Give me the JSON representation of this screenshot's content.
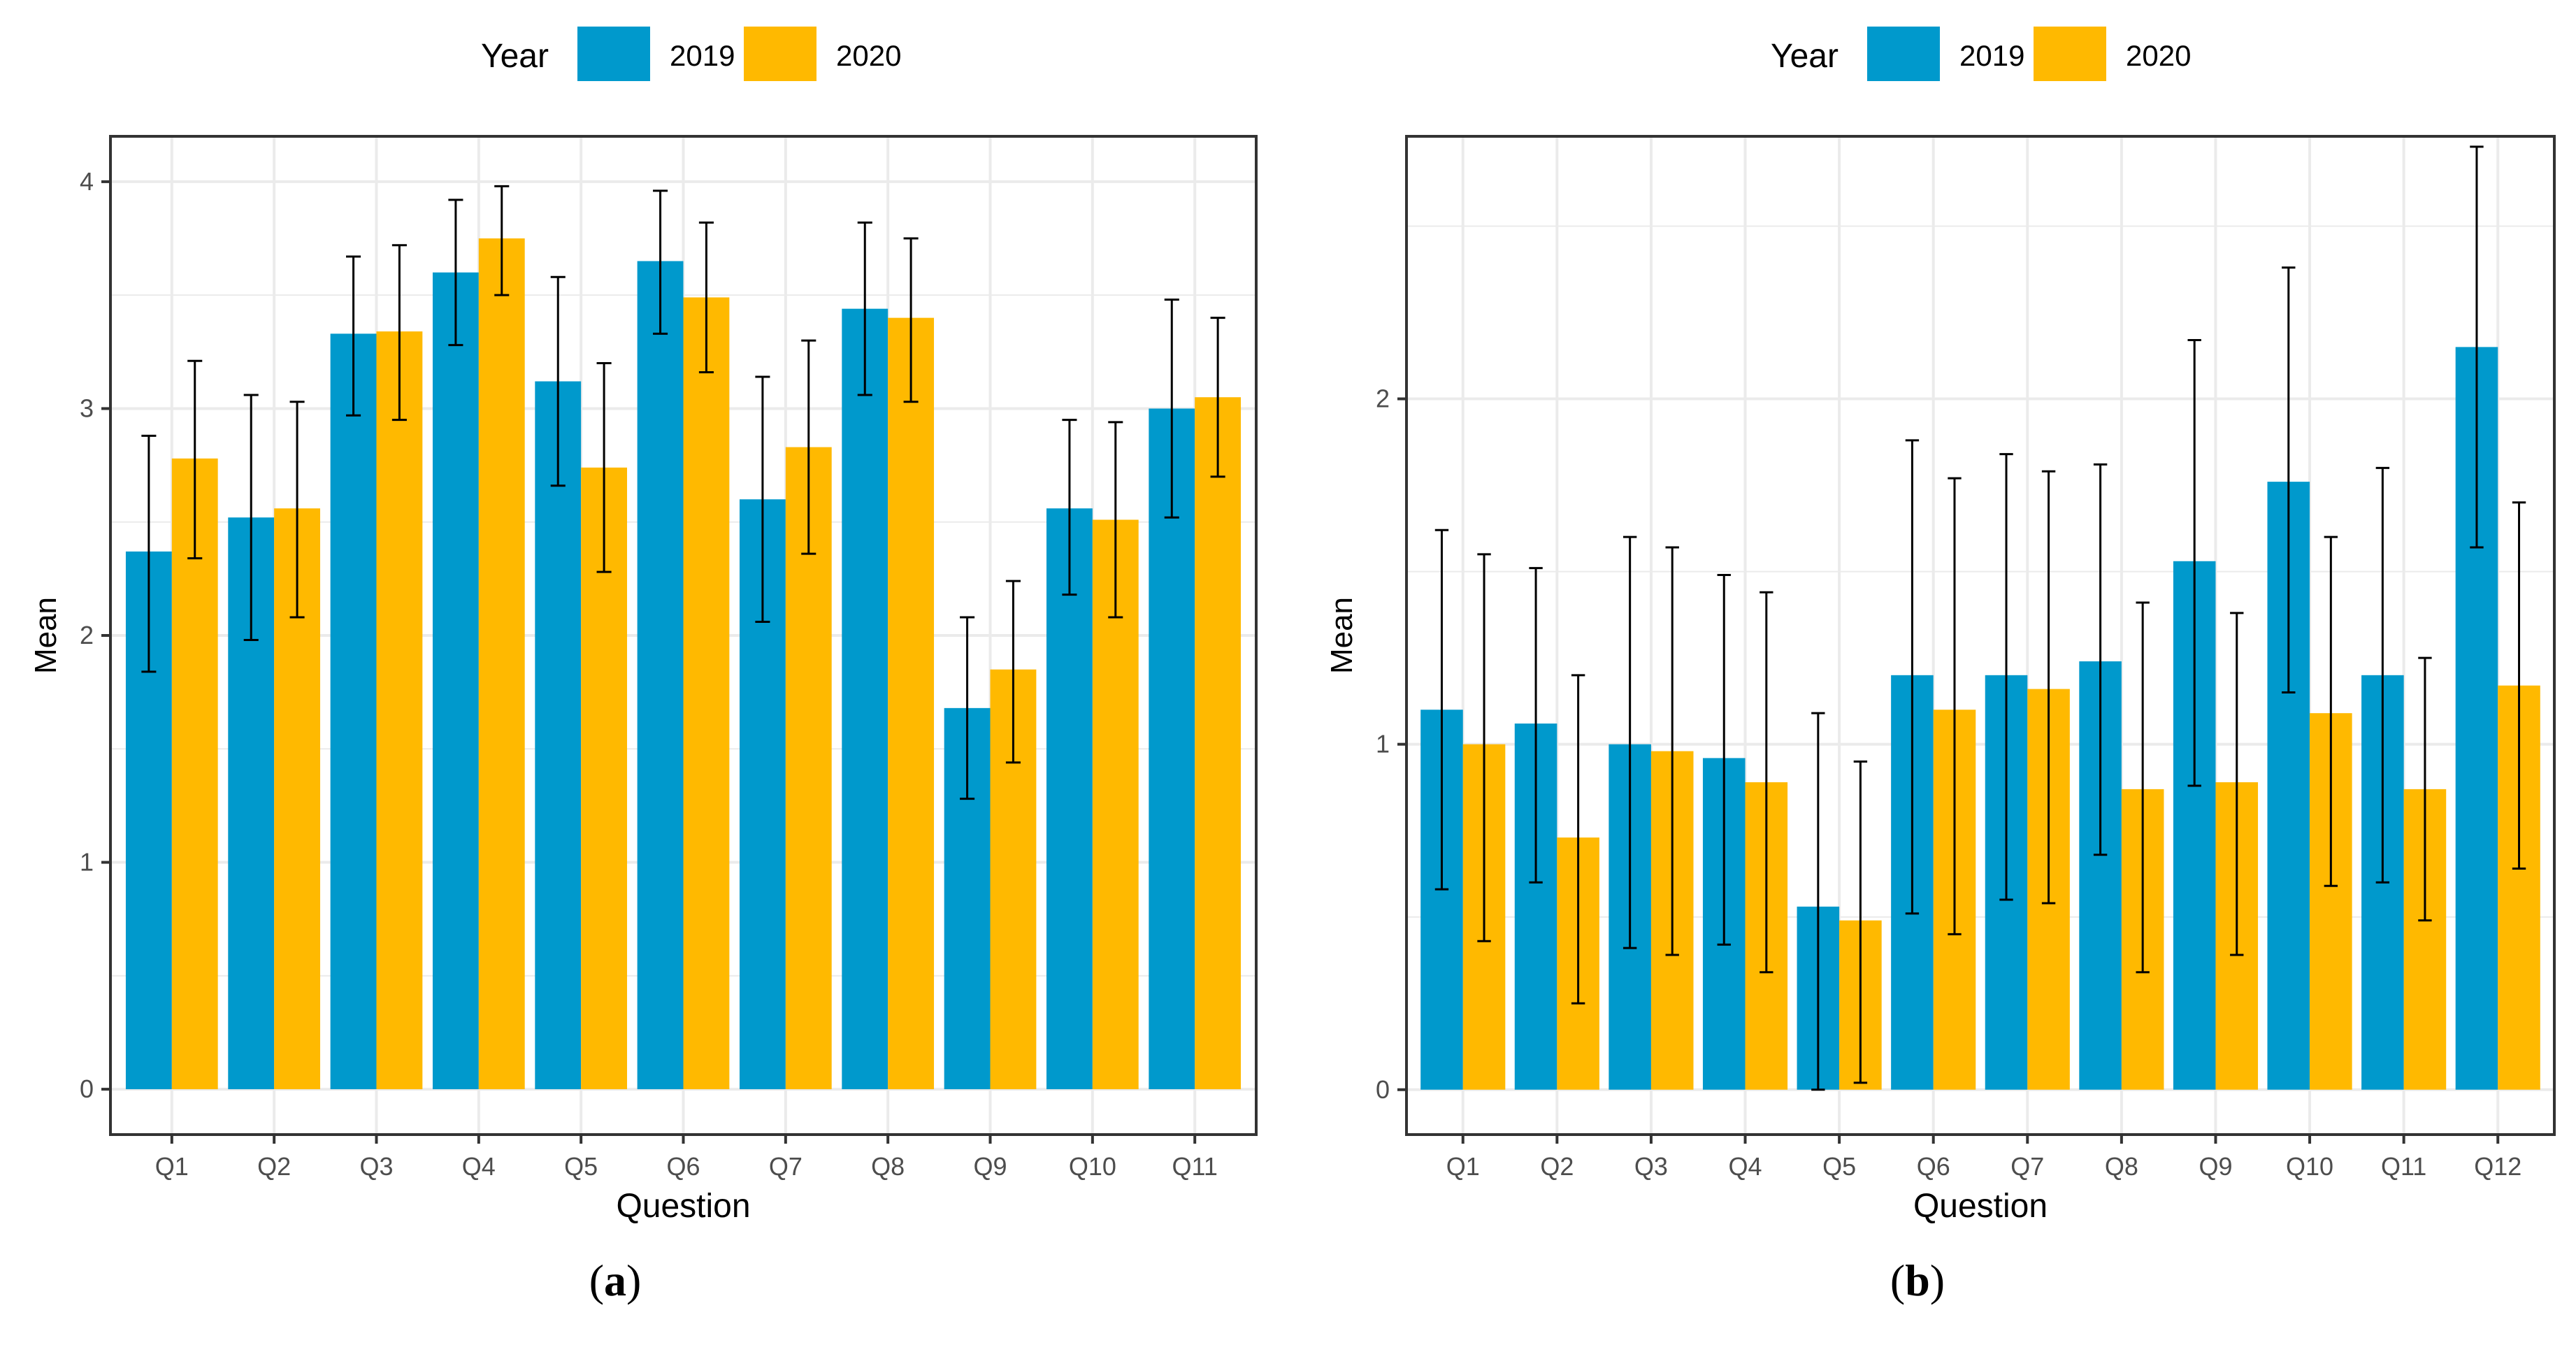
{
  "colors": {
    "y2019": "#0099CC",
    "y2020": "#FFB900",
    "grid": "#EBEBEB",
    "frame": "#333333",
    "text": "#333333",
    "tick": "#4D4D4D"
  },
  "captions": [
    {
      "open": "(",
      "letter": "a",
      "close": ")"
    },
    {
      "open": "(",
      "letter": "b",
      "close": ")"
    }
  ],
  "chart_data": [
    {
      "type": "bar",
      "legend": {
        "title": "Year",
        "entries": [
          "2019",
          "2020"
        ],
        "placement": "top"
      },
      "xlabel": "Question",
      "ylabel": "Mean",
      "ylim": [
        -0.2,
        4.2
      ],
      "yticks": [
        0,
        1,
        2,
        3,
        4
      ],
      "grid": true,
      "categories": [
        "Q1",
        "Q2",
        "Q3",
        "Q4",
        "Q5",
        "Q6",
        "Q7",
        "Q8",
        "Q9",
        "Q10",
        "Q11"
      ],
      "series": [
        {
          "name": "2019",
          "values": [
            2.37,
            2.52,
            3.33,
            3.6,
            3.12,
            3.65,
            2.6,
            3.44,
            1.68,
            2.56,
            3.0
          ],
          "err_low": [
            1.84,
            1.98,
            2.97,
            3.28,
            2.66,
            3.33,
            2.06,
            3.06,
            1.28,
            2.18,
            2.52
          ],
          "err_high": [
            2.88,
            3.06,
            3.67,
            3.92,
            3.58,
            3.96,
            3.14,
            3.82,
            2.08,
            2.95,
            3.48
          ]
        },
        {
          "name": "2020",
          "values": [
            2.78,
            2.56,
            3.34,
            3.75,
            2.74,
            3.49,
            2.83,
            3.4,
            1.85,
            2.51,
            3.05
          ],
          "err_low": [
            2.34,
            2.08,
            2.95,
            3.5,
            2.28,
            3.16,
            2.36,
            3.03,
            1.44,
            2.08,
            2.7
          ],
          "err_high": [
            3.21,
            3.03,
            3.72,
            3.98,
            3.2,
            3.82,
            3.3,
            3.75,
            2.24,
            2.94,
            3.4
          ]
        }
      ]
    },
    {
      "type": "bar",
      "legend": {
        "title": "Year",
        "entries": [
          "2019",
          "2020"
        ],
        "placement": "top"
      },
      "xlabel": "Question",
      "ylabel": "Mean",
      "ylim": [
        -0.13,
        2.76
      ],
      "yticks": [
        0,
        1,
        2
      ],
      "grid": true,
      "categories": [
        "Q1",
        "Q2",
        "Q3",
        "Q4",
        "Q5",
        "Q6",
        "Q7",
        "Q8",
        "Q9",
        "Q10",
        "Q11",
        "Q12"
      ],
      "series": [
        {
          "name": "2019",
          "values": [
            1.1,
            1.06,
            1.0,
            0.96,
            0.53,
            1.2,
            1.2,
            1.24,
            1.53,
            1.76,
            1.2,
            2.15
          ],
          "err_low": [
            0.58,
            0.6,
            0.41,
            0.42,
            0.0,
            0.51,
            0.55,
            0.68,
            0.88,
            1.15,
            0.6,
            1.57
          ],
          "err_high": [
            1.62,
            1.51,
            1.6,
            1.49,
            1.09,
            1.88,
            1.84,
            1.81,
            2.17,
            2.38,
            1.8,
            2.73
          ]
        },
        {
          "name": "2020",
          "values": [
            1.0,
            0.73,
            0.98,
            0.89,
            0.49,
            1.1,
            1.16,
            0.87,
            0.89,
            1.09,
            0.87,
            1.17
          ],
          "err_low": [
            0.43,
            0.25,
            0.39,
            0.34,
            0.02,
            0.45,
            0.54,
            0.34,
            0.39,
            0.59,
            0.49,
            0.64
          ],
          "err_high": [
            1.55,
            1.2,
            1.57,
            1.44,
            0.95,
            1.77,
            1.79,
            1.41,
            1.38,
            1.6,
            1.25,
            1.7
          ]
        }
      ]
    }
  ]
}
